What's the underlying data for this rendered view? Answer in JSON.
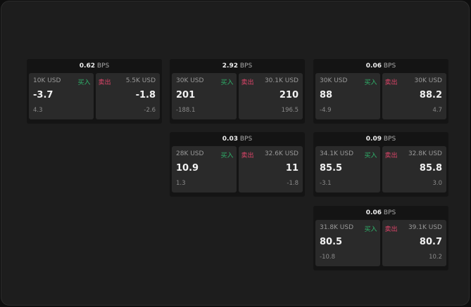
{
  "labels": {
    "buy": "买入",
    "sell": "卖出",
    "unit": "BPS"
  },
  "colors": {
    "buy": "#2fb36b",
    "sell": "#e0456a"
  },
  "widgets": [
    {
      "spread": "0.62",
      "buy": {
        "size": "10K USD",
        "price": "-3.7",
        "change": "4.3"
      },
      "sell": {
        "size": "5.5K USD",
        "price": "-1.8",
        "change": "-2.6"
      }
    },
    {
      "spread": "2.92",
      "buy": {
        "size": "30K USD",
        "price": "201",
        "change": "-188.1"
      },
      "sell": {
        "size": "30.1K USD",
        "price": "210",
        "change": "196.5"
      }
    },
    {
      "spread": "0.06",
      "buy": {
        "size": "30K USD",
        "price": "88",
        "change": "-4.9"
      },
      "sell": {
        "size": "30K USD",
        "price": "88.2",
        "change": "4.7"
      }
    },
    {
      "spread": "0.03",
      "buy": {
        "size": "28K USD",
        "price": "10.9",
        "change": "1.3"
      },
      "sell": {
        "size": "32.6K USD",
        "price": "11",
        "change": "-1.8"
      }
    },
    {
      "spread": "0.09",
      "buy": {
        "size": "34.1K USD",
        "price": "85.5",
        "change": "-3.1"
      },
      "sell": {
        "size": "32.8K USD",
        "price": "85.8",
        "change": "3.0"
      }
    },
    {
      "spread": "0.06",
      "buy": {
        "size": "31.8K USD",
        "price": "80.5",
        "change": "-10.8"
      },
      "sell": {
        "size": "39.1K USD",
        "price": "80.7",
        "change": "10.2"
      }
    }
  ]
}
